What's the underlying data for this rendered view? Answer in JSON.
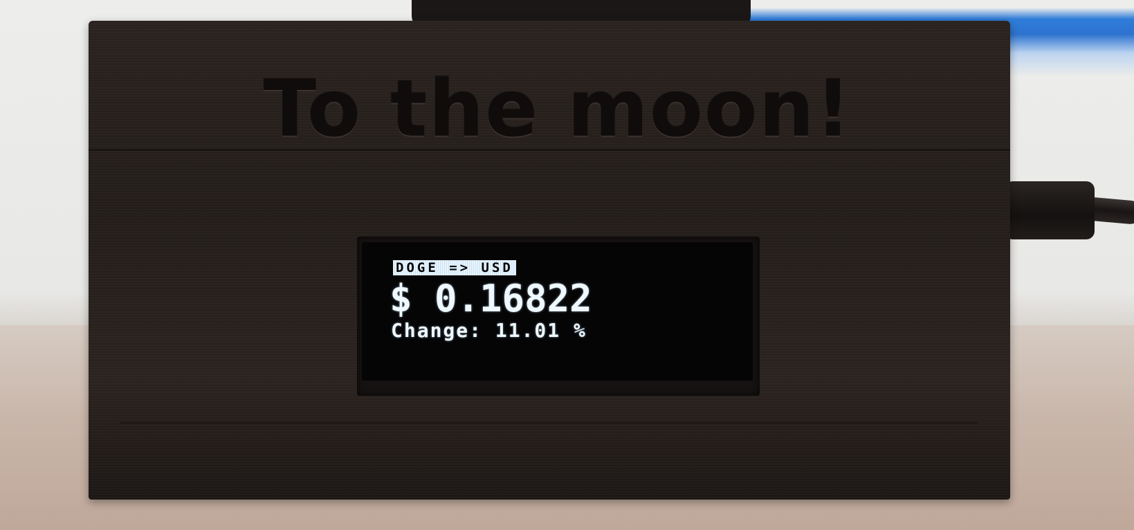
{
  "case": {
    "engraving": "To the moon!"
  },
  "display": {
    "header": "DOGE => USD",
    "price": "$ 0.16822",
    "change": "Change: 11.01 %"
  },
  "colors": {
    "case": "#241e1b",
    "screen": "#050506",
    "oled_text": "#eef8ff",
    "monitor_glow": "#2f7dd9"
  }
}
